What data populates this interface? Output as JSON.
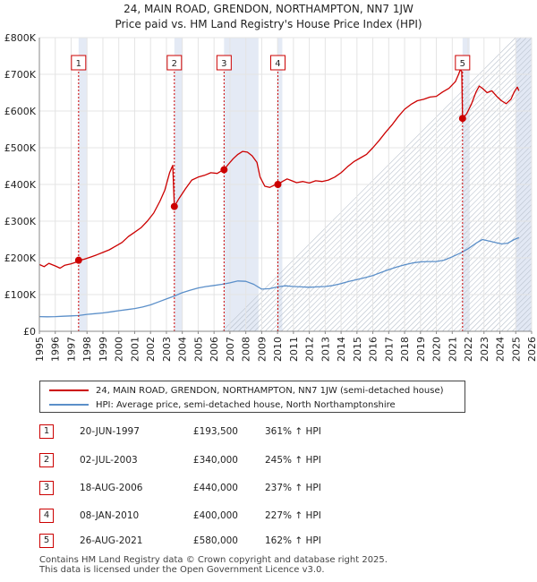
{
  "chart_data": {
    "type": "line",
    "title": "24, MAIN ROAD, GRENDON, NORTHAMPTON, NN7 1JW",
    "subtitle": "Price paid vs. HM Land Registry's House Price Index (HPI)",
    "xlim": [
      1995,
      2026
    ],
    "ylim": [
      0,
      800000
    ],
    "x_ticks": [
      "1995",
      "1996",
      "1997",
      "1998",
      "1999",
      "2000",
      "2001",
      "2002",
      "2003",
      "2004",
      "2005",
      "2006",
      "2007",
      "2008",
      "2009",
      "2010",
      "2011",
      "2012",
      "2013",
      "2014",
      "2015",
      "2016",
      "2017",
      "2018",
      "2019",
      "2020",
      "2021",
      "2022",
      "2023",
      "2024",
      "2025",
      "2026"
    ],
    "y_ticks": [
      {
        "value": 0,
        "label": "£0"
      },
      {
        "value": 100000,
        "label": "£100K"
      },
      {
        "value": 200000,
        "label": "£200K"
      },
      {
        "value": 300000,
        "label": "£300K"
      },
      {
        "value": 400000,
        "label": "£400K"
      },
      {
        "value": 500000,
        "label": "£500K"
      },
      {
        "value": 600000,
        "label": "£600K"
      },
      {
        "value": 700000,
        "label": "£700K"
      },
      {
        "value": 800000,
        "label": "£800K"
      }
    ],
    "series": [
      {
        "name": "24, MAIN ROAD, GRENDON, NORTHAMPTON, NN7 1JW (semi-detached house)",
        "color": "#cc0000",
        "points": [
          [
            1995.0,
            182000
          ],
          [
            1995.3,
            176000
          ],
          [
            1995.6,
            185000
          ],
          [
            1996.0,
            178000
          ],
          [
            1996.3,
            172000
          ],
          [
            1996.6,
            180000
          ],
          [
            1997.0,
            184000
          ],
          [
            1997.3,
            188000
          ],
          [
            1997.47,
            193500
          ],
          [
            1997.8,
            196000
          ],
          [
            1998.2,
            202000
          ],
          [
            1998.6,
            208000
          ],
          [
            1999.0,
            215000
          ],
          [
            1999.4,
            222000
          ],
          [
            1999.8,
            232000
          ],
          [
            2000.2,
            242000
          ],
          [
            2000.6,
            258000
          ],
          [
            2001.0,
            270000
          ],
          [
            2001.4,
            282000
          ],
          [
            2001.8,
            300000
          ],
          [
            2002.2,
            322000
          ],
          [
            2002.6,
            355000
          ],
          [
            2002.9,
            385000
          ],
          [
            2003.2,
            432000
          ],
          [
            2003.4,
            452000
          ],
          [
            2003.5,
            340000
          ],
          [
            2003.8,
            362000
          ],
          [
            2004.2,
            388000
          ],
          [
            2004.6,
            412000
          ],
          [
            2005.0,
            420000
          ],
          [
            2005.4,
            425000
          ],
          [
            2005.8,
            432000
          ],
          [
            2006.2,
            430000
          ],
          [
            2006.5,
            438000
          ],
          [
            2006.63,
            440000
          ],
          [
            2006.9,
            455000
          ],
          [
            2007.2,
            470000
          ],
          [
            2007.5,
            482000
          ],
          [
            2007.8,
            490000
          ],
          [
            2008.1,
            488000
          ],
          [
            2008.4,
            478000
          ],
          [
            2008.7,
            460000
          ],
          [
            2008.9,
            420000
          ],
          [
            2009.2,
            395000
          ],
          [
            2009.5,
            392000
          ],
          [
            2009.8,
            398000
          ],
          [
            2010.02,
            400000
          ],
          [
            2010.3,
            408000
          ],
          [
            2010.6,
            415000
          ],
          [
            2010.9,
            410000
          ],
          [
            2011.2,
            405000
          ],
          [
            2011.6,
            408000
          ],
          [
            2012.0,
            404000
          ],
          [
            2012.4,
            410000
          ],
          [
            2012.8,
            408000
          ],
          [
            2013.2,
            412000
          ],
          [
            2013.6,
            420000
          ],
          [
            2014.0,
            432000
          ],
          [
            2014.4,
            448000
          ],
          [
            2014.8,
            462000
          ],
          [
            2015.2,
            472000
          ],
          [
            2015.6,
            482000
          ],
          [
            2016.0,
            500000
          ],
          [
            2016.4,
            520000
          ],
          [
            2016.8,
            542000
          ],
          [
            2017.2,
            562000
          ],
          [
            2017.6,
            585000
          ],
          [
            2018.0,
            605000
          ],
          [
            2018.4,
            618000
          ],
          [
            2018.8,
            628000
          ],
          [
            2019.2,
            632000
          ],
          [
            2019.6,
            638000
          ],
          [
            2020.0,
            640000
          ],
          [
            2020.4,
            652000
          ],
          [
            2020.8,
            662000
          ],
          [
            2021.2,
            680000
          ],
          [
            2021.4,
            700000
          ],
          [
            2021.5,
            712000
          ],
          [
            2021.6,
            708000
          ],
          [
            2021.65,
            580000
          ],
          [
            2021.9,
            592000
          ],
          [
            2022.2,
            618000
          ],
          [
            2022.5,
            652000
          ],
          [
            2022.7,
            668000
          ],
          [
            2022.9,
            662000
          ],
          [
            2023.2,
            650000
          ],
          [
            2023.5,
            655000
          ],
          [
            2023.8,
            640000
          ],
          [
            2024.1,
            628000
          ],
          [
            2024.4,
            620000
          ],
          [
            2024.7,
            632000
          ],
          [
            2024.9,
            652000
          ],
          [
            2025.1,
            665000
          ],
          [
            2025.2,
            655000
          ]
        ]
      },
      {
        "name": "HPI: Average price, semi-detached house, North Northamptonshire",
        "color": "#5b8fc9",
        "points": [
          [
            1995.0,
            40000
          ],
          [
            1995.5,
            39500
          ],
          [
            1996.0,
            40000
          ],
          [
            1996.5,
            41000
          ],
          [
            1997.0,
            42000
          ],
          [
            1997.47,
            43000
          ],
          [
            1998.0,
            46000
          ],
          [
            1998.5,
            48000
          ],
          [
            1999.0,
            50000
          ],
          [
            1999.5,
            53000
          ],
          [
            2000.0,
            56000
          ],
          [
            2000.5,
            59000
          ],
          [
            2001.0,
            62000
          ],
          [
            2001.5,
            66000
          ],
          [
            2002.0,
            72000
          ],
          [
            2002.5,
            80000
          ],
          [
            2003.0,
            88000
          ],
          [
            2003.5,
            96000
          ],
          [
            2004.0,
            105000
          ],
          [
            2004.5,
            112000
          ],
          [
            2005.0,
            118000
          ],
          [
            2005.5,
            122000
          ],
          [
            2006.0,
            125000
          ],
          [
            2006.5,
            128000
          ],
          [
            2007.0,
            132000
          ],
          [
            2007.5,
            137000
          ],
          [
            2008.0,
            136000
          ],
          [
            2008.5,
            128000
          ],
          [
            2009.0,
            115000
          ],
          [
            2009.5,
            116000
          ],
          [
            2010.0,
            121000
          ],
          [
            2010.5,
            124000
          ],
          [
            2011.0,
            122000
          ],
          [
            2011.5,
            121000
          ],
          [
            2012.0,
            120000
          ],
          [
            2012.5,
            121000
          ],
          [
            2013.0,
            122000
          ],
          [
            2013.5,
            125000
          ],
          [
            2014.0,
            130000
          ],
          [
            2014.5,
            136000
          ],
          [
            2015.0,
            141000
          ],
          [
            2015.5,
            146000
          ],
          [
            2016.0,
            152000
          ],
          [
            2016.5,
            160000
          ],
          [
            2017.0,
            168000
          ],
          [
            2017.5,
            175000
          ],
          [
            2018.0,
            181000
          ],
          [
            2018.5,
            186000
          ],
          [
            2019.0,
            189000
          ],
          [
            2019.5,
            190000
          ],
          [
            2020.0,
            190000
          ],
          [
            2020.5,
            194000
          ],
          [
            2021.0,
            203000
          ],
          [
            2021.5,
            213000
          ],
          [
            2022.0,
            225000
          ],
          [
            2022.5,
            240000
          ],
          [
            2022.9,
            250000
          ],
          [
            2023.3,
            246000
          ],
          [
            2023.7,
            242000
          ],
          [
            2024.1,
            238000
          ],
          [
            2024.5,
            240000
          ],
          [
            2024.9,
            250000
          ],
          [
            2025.2,
            255000
          ]
        ]
      }
    ],
    "shaded_regions": [
      [
        1997.47,
        1998.0
      ],
      [
        2003.5,
        2004.0
      ],
      [
        2006.63,
        2008.8
      ],
      [
        2010.02,
        2010.3
      ],
      [
        2021.65,
        2022.1
      ],
      [
        2025.0,
        2026.0
      ]
    ],
    "markers": [
      {
        "label": "1",
        "x": 1997.47,
        "y": 193500
      },
      {
        "label": "2",
        "x": 2003.5,
        "y": 340000
      },
      {
        "label": "3",
        "x": 2006.63,
        "y": 440000
      },
      {
        "label": "4",
        "x": 2010.02,
        "y": 400000
      },
      {
        "label": "5",
        "x": 2021.65,
        "y": 580000
      }
    ]
  },
  "legend": {
    "property_label": "24, MAIN ROAD, GRENDON, NORTHAMPTON, NN7 1JW (semi-detached house)",
    "hpi_label": "HPI: Average price, semi-detached house, North Northamptonshire"
  },
  "sales": [
    {
      "num": "1",
      "date": "20-JUN-1997",
      "price": "£193,500",
      "hpi": "361% ↑ HPI"
    },
    {
      "num": "2",
      "date": "02-JUL-2003",
      "price": "£340,000",
      "hpi": "245% ↑ HPI"
    },
    {
      "num": "3",
      "date": "18-AUG-2006",
      "price": "£440,000",
      "hpi": "237% ↑ HPI"
    },
    {
      "num": "4",
      "date": "08-JAN-2010",
      "price": "£400,000",
      "hpi": "227% ↑ HPI"
    },
    {
      "num": "5",
      "date": "26-AUG-2021",
      "price": "£580,000",
      "hpi": "162% ↑ HPI"
    }
  ],
  "footer": {
    "line1": "Contains HM Land Registry data © Crown copyright and database right 2025.",
    "line2": "This data is licensed under the Open Government Licence v3.0."
  }
}
